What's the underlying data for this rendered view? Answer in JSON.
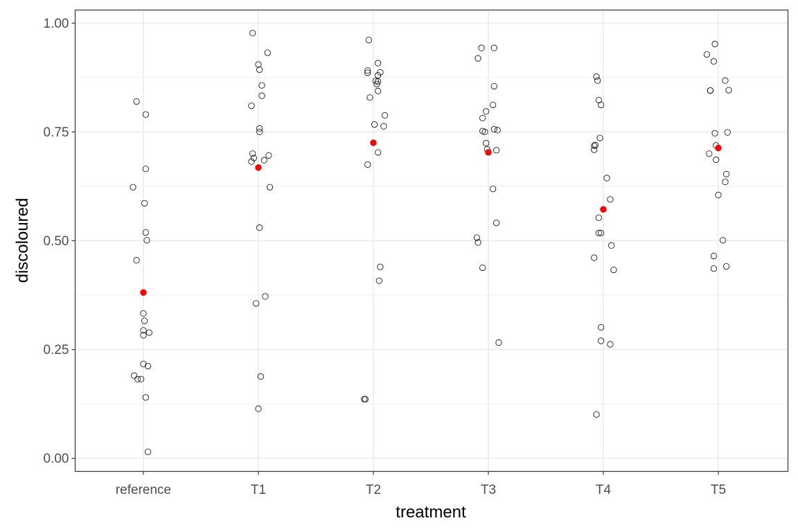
{
  "chart_data": {
    "type": "scatter",
    "xlabel": "treatment",
    "ylabel": "discoloured",
    "categories": [
      "reference",
      "T1",
      "T2",
      "T3",
      "T4",
      "T5"
    ],
    "ylim": [
      -0.03,
      1.03
    ],
    "yticks": [
      0.0,
      0.25,
      0.5,
      0.75,
      1.0
    ],
    "ytick_labels": [
      "0.00",
      "0.25",
      "0.50",
      "0.75",
      "1.00"
    ],
    "grid": true,
    "legend": "none",
    "colors": {
      "points": "#000000",
      "mean": "#ff0000",
      "grid": "#ebebeb",
      "panel_border": "#333333"
    },
    "series": [
      {
        "role": "observations",
        "points": [
          {
            "category": "reference",
            "jitter": -0.06,
            "y": 0.82
          },
          {
            "category": "reference",
            "jitter": 0.02,
            "y": 0.79
          },
          {
            "category": "reference",
            "jitter": 0.02,
            "y": 0.665
          },
          {
            "category": "reference",
            "jitter": -0.09,
            "y": 0.623
          },
          {
            "category": "reference",
            "jitter": 0.01,
            "y": 0.586
          },
          {
            "category": "reference",
            "jitter": 0.02,
            "y": 0.519
          },
          {
            "category": "reference",
            "jitter": 0.03,
            "y": 0.501
          },
          {
            "category": "reference",
            "jitter": -0.06,
            "y": 0.455
          },
          {
            "category": "reference",
            "jitter": 0.0,
            "y": 0.333
          },
          {
            "category": "reference",
            "jitter": 0.01,
            "y": 0.316
          },
          {
            "category": "reference",
            "jitter": 0.0,
            "y": 0.294
          },
          {
            "category": "reference",
            "jitter": 0.05,
            "y": 0.289
          },
          {
            "category": "reference",
            "jitter": 0.0,
            "y": 0.283
          },
          {
            "category": "reference",
            "jitter": 0.0,
            "y": 0.217
          },
          {
            "category": "reference",
            "jitter": 0.04,
            "y": 0.212
          },
          {
            "category": "reference",
            "jitter": -0.08,
            "y": 0.19
          },
          {
            "category": "reference",
            "jitter": -0.05,
            "y": 0.182
          },
          {
            "category": "reference",
            "jitter": -0.02,
            "y": 0.182
          },
          {
            "category": "reference",
            "jitter": 0.02,
            "y": 0.14
          },
          {
            "category": "reference",
            "jitter": 0.04,
            "y": 0.015
          },
          {
            "category": "T1",
            "jitter": -0.05,
            "y": 0.977
          },
          {
            "category": "T1",
            "jitter": 0.08,
            "y": 0.932
          },
          {
            "category": "T1",
            "jitter": 0.0,
            "y": 0.905
          },
          {
            "category": "T1",
            "jitter": 0.01,
            "y": 0.893
          },
          {
            "category": "T1",
            "jitter": 0.03,
            "y": 0.857
          },
          {
            "category": "T1",
            "jitter": 0.03,
            "y": 0.833
          },
          {
            "category": "T1",
            "jitter": -0.06,
            "y": 0.81
          },
          {
            "category": "T1",
            "jitter": 0.01,
            "y": 0.758
          },
          {
            "category": "T1",
            "jitter": 0.01,
            "y": 0.75
          },
          {
            "category": "T1",
            "jitter": -0.05,
            "y": 0.7
          },
          {
            "category": "T1",
            "jitter": 0.09,
            "y": 0.696
          },
          {
            "category": "T1",
            "jitter": -0.04,
            "y": 0.69
          },
          {
            "category": "T1",
            "jitter": 0.05,
            "y": 0.685
          },
          {
            "category": "T1",
            "jitter": -0.06,
            "y": 0.682
          },
          {
            "category": "T1",
            "jitter": 0.1,
            "y": 0.623
          },
          {
            "category": "T1",
            "jitter": 0.01,
            "y": 0.53
          },
          {
            "category": "T1",
            "jitter": 0.06,
            "y": 0.372
          },
          {
            "category": "T1",
            "jitter": -0.02,
            "y": 0.356
          },
          {
            "category": "T1",
            "jitter": 0.02,
            "y": 0.188
          },
          {
            "category": "T1",
            "jitter": 0.0,
            "y": 0.114
          },
          {
            "category": "T2",
            "jitter": -0.04,
            "y": 0.961
          },
          {
            "category": "T2",
            "jitter": 0.04,
            "y": 0.908
          },
          {
            "category": "T2",
            "jitter": -0.05,
            "y": 0.891
          },
          {
            "category": "T2",
            "jitter": 0.06,
            "y": 0.887
          },
          {
            "category": "T2",
            "jitter": -0.05,
            "y": 0.886
          },
          {
            "category": "T2",
            "jitter": 0.04,
            "y": 0.88
          },
          {
            "category": "T2",
            "jitter": 0.02,
            "y": 0.867
          },
          {
            "category": "T2",
            "jitter": 0.04,
            "y": 0.866
          },
          {
            "category": "T2",
            "jitter": 0.03,
            "y": 0.86
          },
          {
            "category": "T2",
            "jitter": 0.04,
            "y": 0.844
          },
          {
            "category": "T2",
            "jitter": -0.03,
            "y": 0.829
          },
          {
            "category": "T2",
            "jitter": 0.1,
            "y": 0.788
          },
          {
            "category": "T2",
            "jitter": 0.01,
            "y": 0.767
          },
          {
            "category": "T2",
            "jitter": 0.09,
            "y": 0.763
          },
          {
            "category": "T2",
            "jitter": 0.04,
            "y": 0.703
          },
          {
            "category": "T2",
            "jitter": -0.05,
            "y": 0.675
          },
          {
            "category": "T2",
            "jitter": 0.06,
            "y": 0.44
          },
          {
            "category": "T2",
            "jitter": 0.05,
            "y": 0.408
          },
          {
            "category": "T2",
            "jitter": -0.08,
            "y": 0.136
          },
          {
            "category": "T2",
            "jitter": -0.07,
            "y": 0.136
          },
          {
            "category": "T3",
            "jitter": -0.06,
            "y": 0.943
          },
          {
            "category": "T3",
            "jitter": 0.05,
            "y": 0.943
          },
          {
            "category": "T3",
            "jitter": -0.09,
            "y": 0.919
          },
          {
            "category": "T3",
            "jitter": 0.05,
            "y": 0.855
          },
          {
            "category": "T3",
            "jitter": 0.04,
            "y": 0.812
          },
          {
            "category": "T3",
            "jitter": -0.02,
            "y": 0.797
          },
          {
            "category": "T3",
            "jitter": -0.05,
            "y": 0.782
          },
          {
            "category": "T3",
            "jitter": 0.05,
            "y": 0.756
          },
          {
            "category": "T3",
            "jitter": 0.08,
            "y": 0.754
          },
          {
            "category": "T3",
            "jitter": -0.05,
            "y": 0.752
          },
          {
            "category": "T3",
            "jitter": -0.03,
            "y": 0.75
          },
          {
            "category": "T3",
            "jitter": -0.02,
            "y": 0.724
          },
          {
            "category": "T3",
            "jitter": -0.01,
            "y": 0.71
          },
          {
            "category": "T3",
            "jitter": 0.07,
            "y": 0.708
          },
          {
            "category": "T3",
            "jitter": 0.04,
            "y": 0.619
          },
          {
            "category": "T3",
            "jitter": 0.07,
            "y": 0.541
          },
          {
            "category": "T3",
            "jitter": -0.1,
            "y": 0.507
          },
          {
            "category": "T3",
            "jitter": -0.09,
            "y": 0.496
          },
          {
            "category": "T3",
            "jitter": -0.05,
            "y": 0.438
          },
          {
            "category": "T3",
            "jitter": 0.09,
            "y": 0.266
          },
          {
            "category": "T4",
            "jitter": -0.06,
            "y": 0.877
          },
          {
            "category": "T4",
            "jitter": -0.05,
            "y": 0.868
          },
          {
            "category": "T4",
            "jitter": -0.04,
            "y": 0.823
          },
          {
            "category": "T4",
            "jitter": -0.02,
            "y": 0.812
          },
          {
            "category": "T4",
            "jitter": -0.03,
            "y": 0.736
          },
          {
            "category": "T4",
            "jitter": -0.07,
            "y": 0.72
          },
          {
            "category": "T4",
            "jitter": -0.08,
            "y": 0.718
          },
          {
            "category": "T4",
            "jitter": -0.08,
            "y": 0.709
          },
          {
            "category": "T4",
            "jitter": 0.03,
            "y": 0.644
          },
          {
            "category": "T4",
            "jitter": 0.06,
            "y": 0.595
          },
          {
            "category": "T4",
            "jitter": -0.04,
            "y": 0.553
          },
          {
            "category": "T4",
            "jitter": -0.04,
            "y": 0.518
          },
          {
            "category": "T4",
            "jitter": -0.02,
            "y": 0.518
          },
          {
            "category": "T4",
            "jitter": 0.07,
            "y": 0.489
          },
          {
            "category": "T4",
            "jitter": -0.08,
            "y": 0.461
          },
          {
            "category": "T4",
            "jitter": 0.09,
            "y": 0.433
          },
          {
            "category": "T4",
            "jitter": -0.02,
            "y": 0.301
          },
          {
            "category": "T4",
            "jitter": -0.02,
            "y": 0.27
          },
          {
            "category": "T4",
            "jitter": 0.06,
            "y": 0.262
          },
          {
            "category": "T4",
            "jitter": -0.06,
            "y": 0.101
          },
          {
            "category": "T5",
            "jitter": -0.03,
            "y": 0.952
          },
          {
            "category": "T5",
            "jitter": -0.1,
            "y": 0.928
          },
          {
            "category": "T5",
            "jitter": -0.04,
            "y": 0.912
          },
          {
            "category": "T5",
            "jitter": 0.06,
            "y": 0.868
          },
          {
            "category": "T5",
            "jitter": -0.07,
            "y": 0.845
          },
          {
            "category": "T5",
            "jitter": -0.07,
            "y": 0.845
          },
          {
            "category": "T5",
            "jitter": 0.09,
            "y": 0.846
          },
          {
            "category": "T5",
            "jitter": 0.08,
            "y": 0.749
          },
          {
            "category": "T5",
            "jitter": -0.03,
            "y": 0.747
          },
          {
            "category": "T5",
            "jitter": -0.02,
            "y": 0.719
          },
          {
            "category": "T5",
            "jitter": -0.08,
            "y": 0.7
          },
          {
            "category": "T5",
            "jitter": -0.02,
            "y": 0.686
          },
          {
            "category": "T5",
            "jitter": 0.07,
            "y": 0.653
          },
          {
            "category": "T5",
            "jitter": 0.06,
            "y": 0.635
          },
          {
            "category": "T5",
            "jitter": 0.0,
            "y": 0.605
          },
          {
            "category": "T5",
            "jitter": 0.04,
            "y": 0.501
          },
          {
            "category": "T5",
            "jitter": -0.04,
            "y": 0.465
          },
          {
            "category": "T5",
            "jitter": 0.07,
            "y": 0.441
          },
          {
            "category": "T5",
            "jitter": -0.04,
            "y": 0.436
          }
        ]
      },
      {
        "role": "mean",
        "points": [
          {
            "category": "reference",
            "y": 0.381
          },
          {
            "category": "T1",
            "y": 0.668
          },
          {
            "category": "T2",
            "y": 0.725
          },
          {
            "category": "T3",
            "y": 0.703
          },
          {
            "category": "T4",
            "y": 0.572
          },
          {
            "category": "T5",
            "y": 0.713
          }
        ]
      }
    ]
  }
}
